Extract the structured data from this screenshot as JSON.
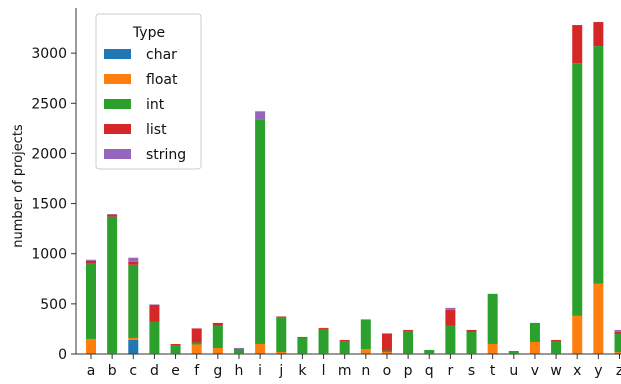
{
  "chart_data": {
    "type": "bar",
    "stacked": true,
    "xlabel": "",
    "ylabel": "number of projects",
    "ylim": [
      0,
      3450
    ],
    "yticks": [
      0,
      500,
      1000,
      1500,
      2000,
      2500,
      3000
    ],
    "grid": false,
    "legend": {
      "title": "Type",
      "placement": "top-left"
    },
    "categories": [
      "a",
      "b",
      "c",
      "d",
      "e",
      "f",
      "g",
      "h",
      "i",
      "j",
      "k",
      "l",
      "m",
      "n",
      "o",
      "p",
      "q",
      "r",
      "s",
      "t",
      "u",
      "v",
      "w",
      "x",
      "y",
      "z"
    ],
    "series": [
      {
        "name": "char",
        "color": "#1f77b4",
        "values": [
          0,
          0,
          140,
          0,
          0,
          0,
          0,
          0,
          0,
          0,
          0,
          0,
          0,
          0,
          0,
          0,
          0,
          0,
          0,
          0,
          0,
          0,
          0,
          0,
          0,
          0
        ]
      },
      {
        "name": "float",
        "color": "#ff7f0e",
        "values": [
          150,
          10,
          20,
          10,
          10,
          95,
          60,
          10,
          100,
          20,
          10,
          10,
          10,
          50,
          20,
          10,
          10,
          10,
          10,
          100,
          10,
          120,
          10,
          380,
          700,
          20
        ]
      },
      {
        "name": "int",
        "color": "#2ca02c",
        "values": [
          750,
          1360,
          730,
          310,
          80,
          20,
          220,
          40,
          2240,
          350,
          150,
          240,
          120,
          290,
          15,
          220,
          30,
          270,
          210,
          500,
          20,
          190,
          120,
          2520,
          2370,
          180
        ]
      },
      {
        "name": "list",
        "color": "#d62728",
        "values": [
          30,
          20,
          30,
          170,
          10,
          140,
          30,
          0,
          0,
          5,
          10,
          10,
          10,
          5,
          170,
          10,
          0,
          160,
          20,
          0,
          0,
          0,
          10,
          380,
          240,
          20
        ]
      },
      {
        "name": "string",
        "color": "#9467bd",
        "values": [
          10,
          5,
          40,
          5,
          0,
          0,
          0,
          10,
          80,
          0,
          0,
          0,
          0,
          0,
          0,
          0,
          0,
          20,
          0,
          0,
          0,
          0,
          0,
          0,
          0,
          20
        ]
      }
    ]
  }
}
